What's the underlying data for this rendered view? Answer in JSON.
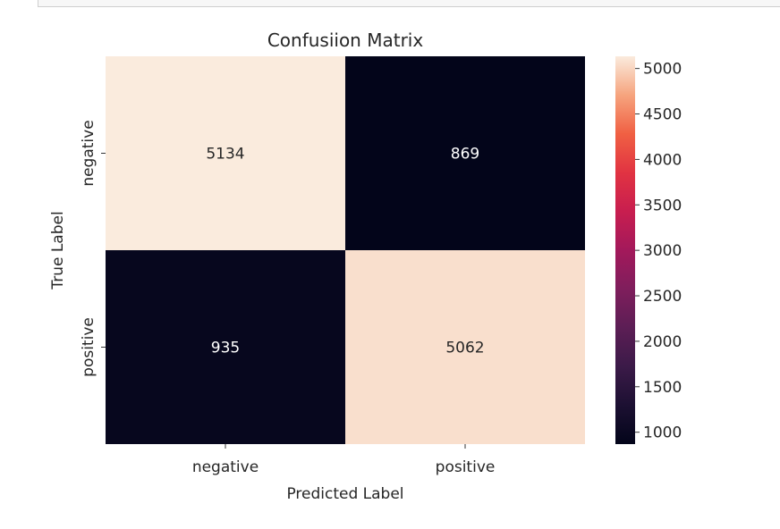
{
  "chart_data": {
    "type": "heatmap",
    "title": "Confusiion Matrix",
    "xlabel": "Predicted Label",
    "ylabel": "True Label",
    "x_categories": [
      "negative",
      "positive"
    ],
    "y_categories": [
      "negative",
      "positive"
    ],
    "values": [
      [
        5134,
        869
      ],
      [
        935,
        5062
      ]
    ],
    "colorbar": {
      "range": [
        869,
        5134
      ],
      "ticks": [
        1000,
        1500,
        2000,
        2500,
        3000,
        3500,
        4000,
        4500,
        5000
      ],
      "tick_labels": [
        "1000",
        "1500",
        "2000",
        "2500",
        "3000",
        "3500",
        "4000",
        "4500",
        "5000"
      ],
      "colormap": "rocket"
    },
    "grid": false,
    "legend": "none"
  }
}
